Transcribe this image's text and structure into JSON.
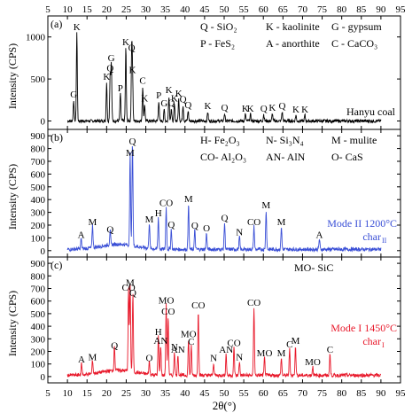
{
  "chart_data": [
    {
      "panel": "(a)",
      "type": "line",
      "color": "#000000",
      "xlim": [
        5,
        95
      ],
      "ylim": [
        -100,
        1250
      ],
      "ylabel": "Intensity (CPS)",
      "yticks": [
        0,
        500,
        1000
      ],
      "top_xticks": [
        "5",
        "10",
        "15",
        "20",
        "25",
        "30",
        "35",
        "40",
        "45",
        "50",
        "55",
        "60",
        "65",
        "70",
        "75",
        "80",
        "85",
        "90",
        "95"
      ],
      "legend_lines": [
        [
          "Q - SiO₂",
          "K - kaolinite",
          "G - gypsum"
        ],
        [
          "P - FeS₂",
          "A - anorthite",
          "C - CaCO₃"
        ]
      ],
      "sample_label": "Hanyu coal",
      "peaks": [
        {
          "x": 11.6,
          "y": 250,
          "label": "G"
        },
        {
          "x": 12.4,
          "y": 1050,
          "label": "K"
        },
        {
          "x": 20.0,
          "y": 460,
          "label": "K"
        },
        {
          "x": 20.9,
          "y": 560,
          "label": "Q"
        },
        {
          "x": 21.2,
          "y": 680,
          "label": "G"
        },
        {
          "x": 23.5,
          "y": 320,
          "label": "P"
        },
        {
          "x": 24.9,
          "y": 870,
          "label": "K"
        },
        {
          "x": 26.4,
          "y": 800,
          "label": "Q"
        },
        {
          "x": 26.6,
          "y": 540,
          "label": "K"
        },
        {
          "x": 29.2,
          "y": 410,
          "label": "C"
        },
        {
          "x": 29.7,
          "y": 200,
          "label": "K"
        },
        {
          "x": 33.3,
          "y": 240,
          "label": "P"
        },
        {
          "x": 34.7,
          "y": 140,
          "label": "G"
        },
        {
          "x": 35.9,
          "y": 300,
          "label": "K"
        },
        {
          "x": 36.5,
          "y": 150,
          "label": "Q"
        },
        {
          "x": 37.3,
          "y": 200,
          "label": "K"
        },
        {
          "x": 38.4,
          "y": 260,
          "label": "K"
        },
        {
          "x": 39.5,
          "y": 190,
          "label": "Q"
        },
        {
          "x": 40.8,
          "y": 120,
          "label": "Q"
        },
        {
          "x": 45.8,
          "y": 110,
          "label": "K"
        },
        {
          "x": 50.1,
          "y": 90,
          "label": "Q"
        },
        {
          "x": 55.4,
          "y": 80,
          "label": "K"
        },
        {
          "x": 56.7,
          "y": 80,
          "label": "K"
        },
        {
          "x": 60.1,
          "y": 80,
          "label": "Q"
        },
        {
          "x": 62.3,
          "y": 90,
          "label": "K"
        },
        {
          "x": 64.8,
          "y": 110,
          "label": "Q"
        },
        {
          "x": 68.3,
          "y": 70,
          "label": "K"
        },
        {
          "x": 70.6,
          "y": 70,
          "label": "K"
        }
      ]
    },
    {
      "panel": "(b)",
      "type": "line",
      "color": "#3a4fd6",
      "xlim": [
        5,
        95
      ],
      "ylim": [
        -50,
        950
      ],
      "ylabel": "Intensity (CPS)",
      "yticks": [
        0,
        100,
        200,
        300,
        400,
        500,
        600,
        700,
        800,
        900
      ],
      "legend_lines": [
        [
          "H- Fe₂O₃",
          "N- Si₃N₄",
          "M - mulite"
        ],
        [
          "CO- Al₂O₃",
          "AN- AlN",
          "O- CaS"
        ]
      ],
      "sample_label_1": "Mode II 1200°C",
      "sample_label_2": "char",
      "sample_label_2_sub": "II",
      "peaks": [
        {
          "x": 13.5,
          "y": 80,
          "label": "A"
        },
        {
          "x": 16.4,
          "y": 180,
          "label": "M"
        },
        {
          "x": 20.9,
          "y": 120,
          "label": "Q"
        },
        {
          "x": 26.0,
          "y": 720,
          "label": "M"
        },
        {
          "x": 26.6,
          "y": 810,
          "label": "Q"
        },
        {
          "x": 30.9,
          "y": 200,
          "label": "M"
        },
        {
          "x": 33.2,
          "y": 250,
          "label": "H"
        },
        {
          "x": 35.2,
          "y": 330,
          "label": "CO"
        },
        {
          "x": 36.5,
          "y": 160,
          "label": "Q"
        },
        {
          "x": 40.9,
          "y": 360,
          "label": "M"
        },
        {
          "x": 42.5,
          "y": 150,
          "label": "Q"
        },
        {
          "x": 45.5,
          "y": 130,
          "label": "O"
        },
        {
          "x": 50.1,
          "y": 210,
          "label": "Q"
        },
        {
          "x": 53.9,
          "y": 100,
          "label": "N"
        },
        {
          "x": 57.6,
          "y": 180,
          "label": "CO"
        },
        {
          "x": 60.7,
          "y": 310,
          "label": "M"
        },
        {
          "x": 64.6,
          "y": 180,
          "label": "M"
        },
        {
          "x": 74.3,
          "y": 80,
          "label": "A"
        }
      ]
    },
    {
      "panel": "(c)",
      "type": "line",
      "color": "#e8182a",
      "xlim": [
        5,
        95
      ],
      "ylim": [
        -50,
        950
      ],
      "ylabel": "Intensity (CPS)",
      "yticks": [
        0,
        100,
        200,
        300,
        400,
        500,
        600,
        700,
        800,
        900
      ],
      "xlabel": "2θ(°)",
      "xticks": [
        "5",
        "10",
        "15",
        "20",
        "25",
        "30",
        "35",
        "40",
        "45",
        "50",
        "55",
        "60",
        "65",
        "70",
        "75",
        "80",
        "85",
        "90",
        "95"
      ],
      "legend_lines": [
        [
          "MO- SiC"
        ]
      ],
      "sample_label_1": "Mode I 1450°C",
      "sample_label_2": "char",
      "sample_label_2_sub": "I",
      "peaks": [
        {
          "x": 13.6,
          "y": 90,
          "label": "A"
        },
        {
          "x": 16.4,
          "y": 110,
          "label": "M"
        },
        {
          "x": 22.0,
          "y": 200,
          "label": "Q"
        },
        {
          "x": 25.6,
          "y": 660,
          "label": "CO"
        },
        {
          "x": 26.0,
          "y": 700,
          "label": "M"
        },
        {
          "x": 26.7,
          "y": 620,
          "label": "Q"
        },
        {
          "x": 30.9,
          "y": 100,
          "label": "O"
        },
        {
          "x": 33.2,
          "y": 310,
          "label": "H"
        },
        {
          "x": 33.8,
          "y": 240,
          "label": "AN"
        },
        {
          "x": 35.2,
          "y": 560,
          "label": "MO"
        },
        {
          "x": 35.7,
          "y": 470,
          "label": "CO"
        },
        {
          "x": 37.3,
          "y": 190,
          "label": "N"
        },
        {
          "x": 38.2,
          "y": 170,
          "label": "AN"
        },
        {
          "x": 40.9,
          "y": 290,
          "label": "MO"
        },
        {
          "x": 41.6,
          "y": 230,
          "label": "C"
        },
        {
          "x": 43.4,
          "y": 520,
          "label": "CO"
        },
        {
          "x": 47.3,
          "y": 100,
          "label": "N"
        },
        {
          "x": 50.5,
          "y": 170,
          "label": "AN"
        },
        {
          "x": 52.5,
          "y": 220,
          "label": "CO"
        },
        {
          "x": 53.9,
          "y": 110,
          "label": "N"
        },
        {
          "x": 57.6,
          "y": 540,
          "label": "CO"
        },
        {
          "x": 60.3,
          "y": 140,
          "label": "MO"
        },
        {
          "x": 64.6,
          "y": 140,
          "label": "M"
        },
        {
          "x": 66.7,
          "y": 210,
          "label": "C"
        },
        {
          "x": 68.2,
          "y": 240,
          "label": "M"
        },
        {
          "x": 72.6,
          "y": 70,
          "label": "MO"
        },
        {
          "x": 77.0,
          "y": 170,
          "label": "C"
        }
      ]
    }
  ]
}
